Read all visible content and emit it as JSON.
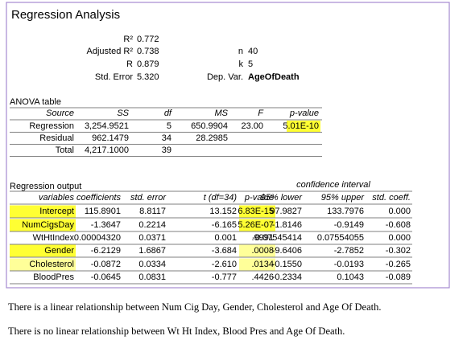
{
  "header": {
    "title": "Regression Analysis"
  },
  "summary": {
    "left": [
      {
        "label": "R²",
        "value": "0.772"
      },
      {
        "label": "Adjusted R²",
        "value": "0.738"
      },
      {
        "label": "R",
        "value": "0.879"
      },
      {
        "label": "Std. Error",
        "value": "5.320"
      }
    ],
    "right": [
      {
        "label": "n",
        "value": "40"
      },
      {
        "label": "k",
        "value": "5"
      },
      {
        "label": "Dep. Var.",
        "value": "AgeOfDeath"
      }
    ]
  },
  "anova": {
    "label": "ANOVA table",
    "columns": [
      "Source",
      "SS",
      "df",
      "MS",
      "F",
      "p-value"
    ],
    "rows": [
      [
        "Regression",
        "3,254.9521",
        "5",
        "650.9904",
        "23.00",
        "5.01E-10"
      ],
      [
        "Residual",
        "962.1479",
        "34",
        "28.2985"
      ],
      [
        "Total",
        "4,217.1000",
        "39"
      ]
    ]
  },
  "regression": {
    "label": "Regression output",
    "group_header": "confidence interval",
    "columns": [
      "variables",
      "coefficients",
      "std. error",
      "t (df=34)",
      "p-value",
      "95% lower",
      "95% upper",
      "std. coeff."
    ],
    "rows": [
      [
        "Intercept",
        "115.8901",
        "8.8117",
        "13.152",
        "6.83E-15",
        "97.9827",
        "133.7976",
        "0.000"
      ],
      [
        "NumCigsDay",
        "-1.3647",
        "0.2214",
        "-6.165",
        "5.26E-07",
        "-1.8146",
        "-0.9149",
        "-0.608"
      ],
      [
        "WtHtIndex",
        "0.00004320",
        "0.0371",
        "0.001",
        ".9991",
        "-0.07545414",
        "0.07554055",
        "0.000"
      ],
      [
        "Gender",
        "-6.2129",
        "1.6867",
        "-3.684",
        ".0008",
        "-9.6406",
        "-2.7852",
        "-0.302"
      ],
      [
        "Cholesterol",
        "-0.0872",
        "0.0334",
        "-2.610",
        ".0134",
        "-0.1550",
        "-0.0193",
        "-0.265"
      ],
      [
        "BloodPres",
        "-0.0645",
        "0.0831",
        "-0.777",
        ".4426",
        "-0.2334",
        "0.1043",
        "-0.089"
      ]
    ]
  },
  "notes": [
    "There is a linear relationship between Num Cig Day, Gender, Cholesterol and Age Of Death.",
    "There is no linear relationship between Wt Ht Index, Blood Pres and Age Of Death."
  ]
}
